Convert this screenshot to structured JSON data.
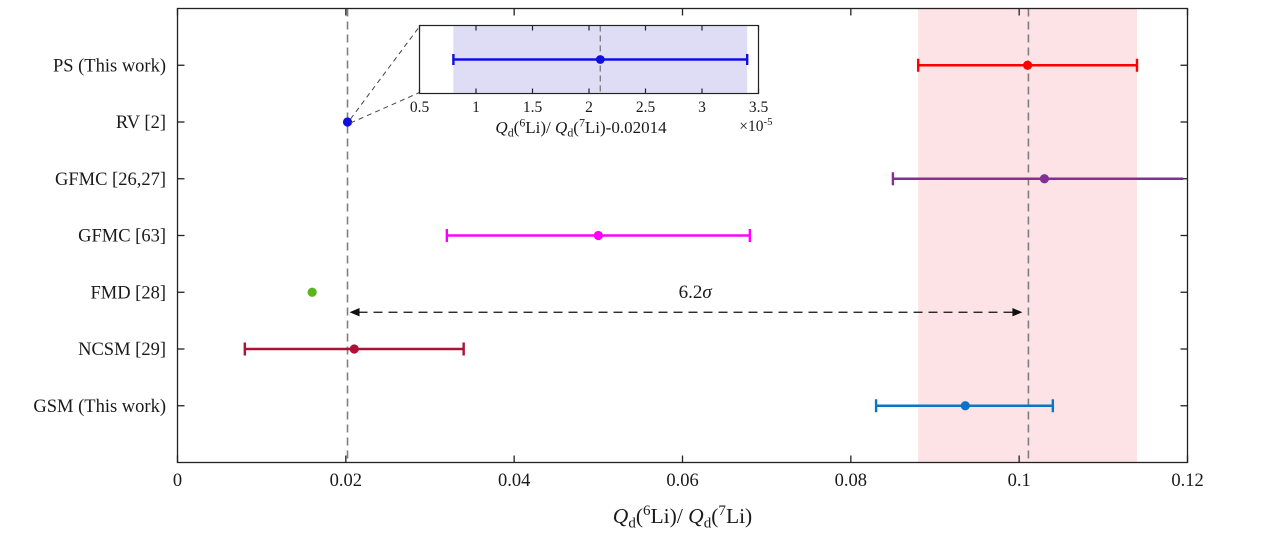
{
  "figure": {
    "background": "#ffffff",
    "frame_color": "#222222",
    "text_color": "#1a1a1a"
  },
  "chart_data": {
    "type": "scatter",
    "title": "",
    "xlabel": "*Q*_{d}(^{6}Li)/ *Q*_{d}(^{7}Li)",
    "xlim": [
      0,
      0.12
    ],
    "xticks": [
      0,
      0.02,
      0.04,
      0.06,
      0.08,
      0.1,
      0.12
    ],
    "xtick_labels": [
      "0",
      "0.02",
      "0.04",
      "0.06",
      "0.08",
      "0.1",
      "0.12"
    ],
    "grid": false,
    "legend": "none",
    "rows": [
      {
        "label": "PS (This work)",
        "value": 0.101,
        "err_lo": 0.088,
        "err_hi": 0.114,
        "color": "#ff0000",
        "cap_left": true,
        "cap_right": true
      },
      {
        "label": "RV [2]",
        "value": 0.0202,
        "err_lo": null,
        "err_hi": null,
        "color": "#0f0fe0",
        "cap_left": false,
        "cap_right": false
      },
      {
        "label": "GFMC [26,27]",
        "value": 0.103,
        "err_lo": 0.085,
        "err_hi": 0.1195,
        "color": "#832f94",
        "cap_left": true,
        "cap_right": false
      },
      {
        "label": "GFMC [63]",
        "value": 0.05,
        "err_lo": 0.032,
        "err_hi": 0.068,
        "color": "#ff00ff",
        "cap_left": true,
        "cap_right": true
      },
      {
        "label": "FMD [28]",
        "value": 0.016,
        "err_lo": null,
        "err_hi": null,
        "color": "#5ab41e",
        "cap_left": false,
        "cap_right": false
      },
      {
        "label": "NCSM [29]",
        "value": 0.021,
        "err_lo": 0.008,
        "err_hi": 0.034,
        "color": "#ac1136",
        "cap_left": true,
        "cap_right": true
      },
      {
        "label": "GSM (This work)",
        "value": 0.0936,
        "err_lo": 0.083,
        "err_hi": 0.104,
        "color": "#0b74c4",
        "cap_left": true,
        "cap_right": true
      }
    ],
    "band": {
      "from": 0.088,
      "to": 0.114,
      "color": "#fde3e5"
    },
    "vlines": [
      {
        "x": 0.0202,
        "color": "#7f7f7f"
      },
      {
        "x": 0.1011,
        "color": "#7f7f7f"
      }
    ],
    "sigma_arrow": {
      "from": 0.0202,
      "to": 0.1011,
      "label": "6.2*σ*",
      "label_x": 0.0615,
      "y_frac": 0.669
    },
    "inset": {
      "source_row": "RV [2]",
      "xlim": [
        0.5,
        3.5
      ],
      "xticks": [
        0.5,
        1,
        1.5,
        2,
        2.5,
        3,
        3.5
      ],
      "xtick_labels": [
        "0.5",
        "1",
        "1.5",
        "2",
        "2.5",
        "3",
        "3.5"
      ],
      "xlabel": "*Q*_{d}(^{6}Li)/ *Q*_{d}(^{7}Li)-0.02014",
      "multiplier": "×10^{-5}",
      "point": {
        "value": 2.1,
        "err_lo": 0.8,
        "err_hi": 3.4,
        "color": "#0f0fe0"
      },
      "band": {
        "from": 0.8,
        "to": 3.4,
        "color": "#deddf5"
      },
      "vline": {
        "x": 2.1,
        "color": "#7f7f7f"
      }
    }
  }
}
